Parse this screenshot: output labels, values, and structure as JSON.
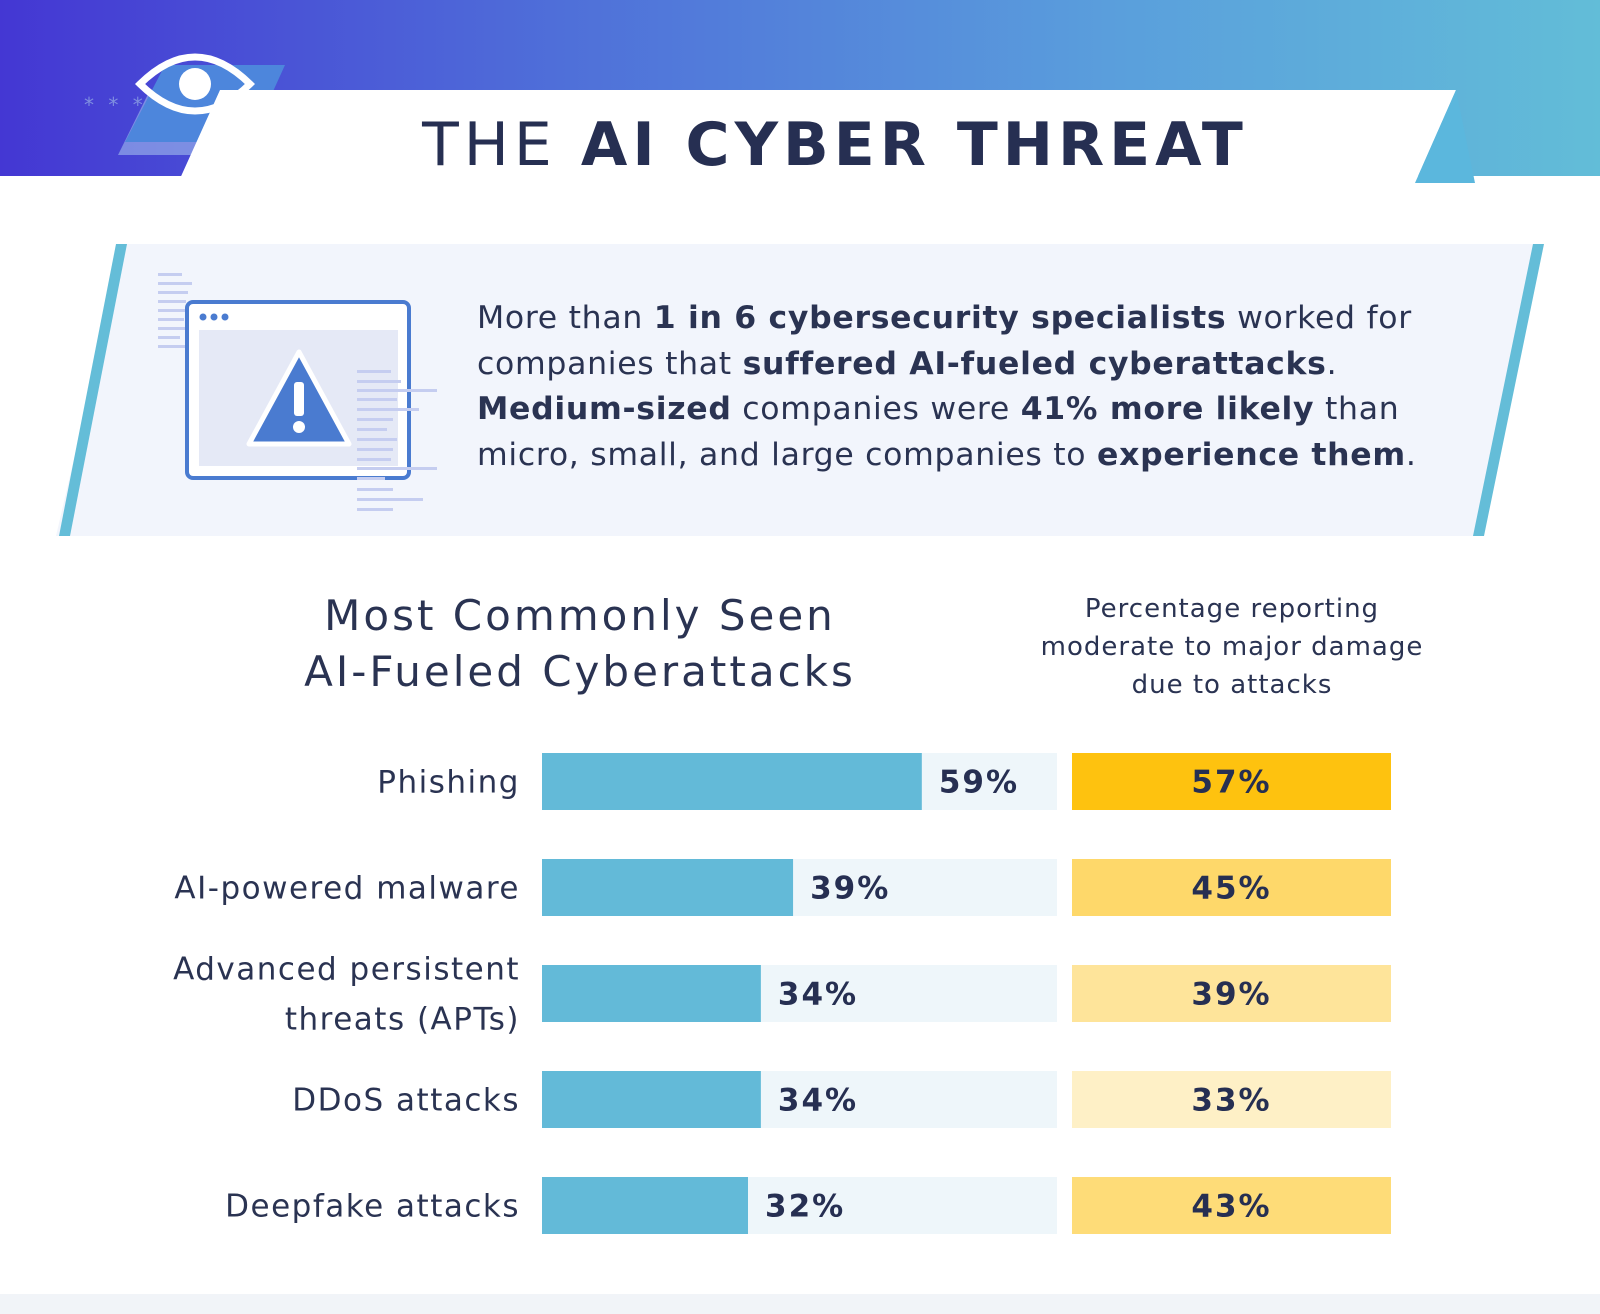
{
  "title": {
    "prefix": "THE",
    "emphasis": "AI CYBER THREAT"
  },
  "callout": {
    "segments": [
      {
        "text": "More than ",
        "bold": false
      },
      {
        "text": "1 in 6 cybersecurity specialists",
        "bold": true
      },
      {
        "text": " worked for companies that ",
        "bold": false
      },
      {
        "text": "suffered AI-fueled cyberattacks",
        "bold": true
      },
      {
        "text": ". ",
        "bold": false
      },
      {
        "text": "Medium-sized",
        "bold": true
      },
      {
        "text": " companies were ",
        "bold": false
      },
      {
        "text": "41% more likely",
        "bold": true
      },
      {
        "text": " than micro, small, and large companies to ",
        "bold": false
      },
      {
        "text": "experience them",
        "bold": true
      },
      {
        "text": ".",
        "bold": false
      }
    ]
  },
  "colors": {
    "attack_bar": "#63bad8",
    "attack_track": "#eef6fa",
    "damage_shades": [
      "#fec20f",
      "#fed86a",
      "#fee49a",
      "#fef0c6",
      "#fedc78"
    ],
    "title_text": "#262f52"
  },
  "chart_data": {
    "type": "bar",
    "orientation": "horizontal",
    "title": "Most Commonly Seen AI-Fueled Cyberattacks",
    "secondary_title": "Percentage reporting moderate to major damage due to attacks",
    "categories": [
      "Phishing",
      "AI-powered malware",
      "Advanced persistent threats (APTs)",
      "DDoS attacks",
      "Deepfake attacks"
    ],
    "category_lines": [
      [
        "Phishing"
      ],
      [
        "AI-powered malware"
      ],
      [
        "Advanced persistent",
        "threats (APTs)"
      ],
      [
        "DDoS attacks"
      ],
      [
        "Deepfake attacks"
      ]
    ],
    "series": [
      {
        "values": [
          59,
          39,
          34,
          34,
          32
        ],
        "labels": [
          "59%",
          "39%",
          "34%",
          "34%",
          "32%"
        ]
      },
      {
        "values": [
          57,
          45,
          39,
          33,
          43
        ],
        "labels": [
          "57%",
          "45%",
          "39%",
          "33%",
          "43%"
        ]
      }
    ],
    "xlim": [
      0,
      80
    ],
    "unit": "%"
  }
}
